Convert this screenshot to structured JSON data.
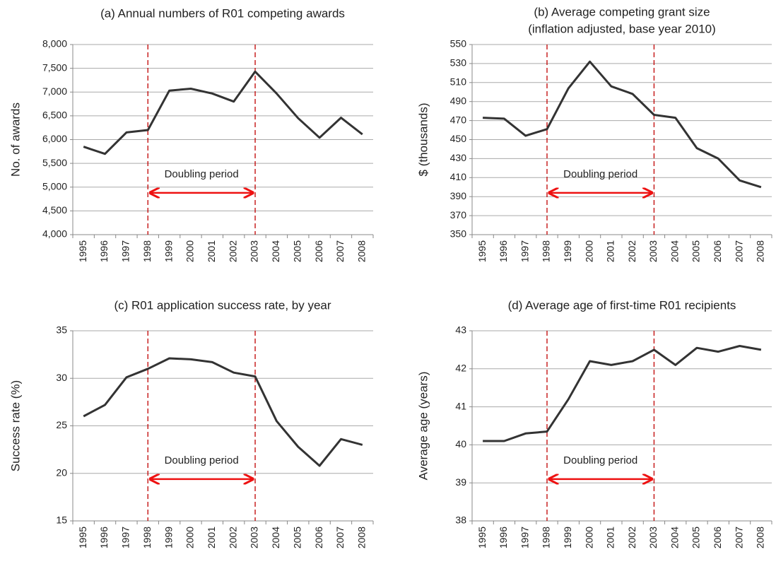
{
  "chart_data": [
    {
      "type": "line",
      "title": "(a) Annual numbers of R01 competing awards",
      "ylabel": "No. of awards",
      "categories": [
        "1995",
        "1996",
        "1997",
        "1998",
        "1999",
        "2000",
        "2001",
        "2002",
        "2003",
        "2004",
        "2005",
        "2006",
        "2007",
        "2008"
      ],
      "series": [
        {
          "color": "#333333",
          "values": [
            5850,
            5700,
            6150,
            6200,
            7030,
            7070,
            6970,
            6800,
            7430,
            6970,
            6450,
            6040,
            6460,
            6110
          ]
        }
      ],
      "ylim": [
        4000,
        8000
      ],
      "yticks": [
        {
          "value": 4000,
          "label": "4,000"
        },
        {
          "value": 4500,
          "label": "4,500"
        },
        {
          "value": 5000,
          "label": "5,000"
        },
        {
          "value": 5500,
          "label": "5,500"
        },
        {
          "value": 6000,
          "label": "6,000"
        },
        {
          "value": 6500,
          "label": "6,500"
        },
        {
          "value": 7000,
          "label": "7,000"
        },
        {
          "value": 7500,
          "label": "7,500"
        },
        {
          "value": 8000,
          "label": "8,000"
        }
      ],
      "grid": true,
      "annotation": {
        "text": "Doubling period",
        "from": "1998",
        "to": "2003",
        "color": "#ee1111",
        "line_color": "#c00000"
      }
    },
    {
      "type": "line",
      "title": [
        "(b) Average competing grant size",
        "(inflation adjusted, base year 2010)"
      ],
      "ylabel": "$ (thousands)",
      "categories": [
        "1995",
        "1996",
        "1997",
        "1998",
        "1999",
        "2000",
        "2001",
        "2002",
        "2003",
        "2004",
        "2005",
        "2006",
        "2007",
        "2008"
      ],
      "series": [
        {
          "color": "#333333",
          "values": [
            473,
            472,
            454,
            461,
            504,
            532,
            506,
            498,
            476,
            473,
            441,
            430,
            407,
            400
          ]
        }
      ],
      "ylim": [
        350,
        550
      ],
      "yticks": [
        350,
        370,
        390,
        410,
        430,
        450,
        470,
        490,
        510,
        530,
        550
      ],
      "grid": true,
      "annotation": {
        "text": "Doubling period",
        "from": "1998",
        "to": "2003",
        "color": "#ee1111",
        "line_color": "#c00000"
      }
    },
    {
      "type": "line",
      "title": "(c) R01 application success rate, by year",
      "ylabel": "Success rate (%)",
      "categories": [
        "1995",
        "1996",
        "1997",
        "1998",
        "1999",
        "2000",
        "2001",
        "2002",
        "2003",
        "2004",
        "2005",
        "2006",
        "2007",
        "2008"
      ],
      "series": [
        {
          "color": "#333333",
          "values": [
            26,
            27.2,
            30.1,
            31,
            32.1,
            32,
            31.7,
            30.6,
            30.2,
            25.5,
            22.8,
            20.8,
            23.6,
            23
          ]
        }
      ],
      "ylim": [
        15,
        35
      ],
      "yticks": [
        15,
        20,
        25,
        30,
        35
      ],
      "grid": true,
      "annotation": {
        "text": "Doubling period",
        "from": "1998",
        "to": "2003",
        "color": "#ee1111",
        "line_color": "#c00000"
      }
    },
    {
      "type": "line",
      "title": "(d) Average age of first-time R01 recipients",
      "ylabel": "Average age (years)",
      "categories": [
        "1995",
        "1996",
        "1997",
        "1998",
        "1999",
        "2000",
        "2001",
        "2002",
        "2003",
        "2004",
        "2005",
        "2006",
        "2007",
        "2008"
      ],
      "series": [
        {
          "color": "#333333",
          "values": [
            40.1,
            40.1,
            40.3,
            40.35,
            41.2,
            42.2,
            42.1,
            42.2,
            42.5,
            42.1,
            42.55,
            42.45,
            42.6,
            42.5
          ]
        }
      ],
      "ylim": [
        38,
        43
      ],
      "yticks": [
        38,
        39,
        40,
        41,
        42,
        43
      ],
      "grid": true,
      "annotation": {
        "text": "Doubling period",
        "from": "1998",
        "to": "2003",
        "color": "#ee1111",
        "line_color": "#c00000"
      }
    }
  ]
}
